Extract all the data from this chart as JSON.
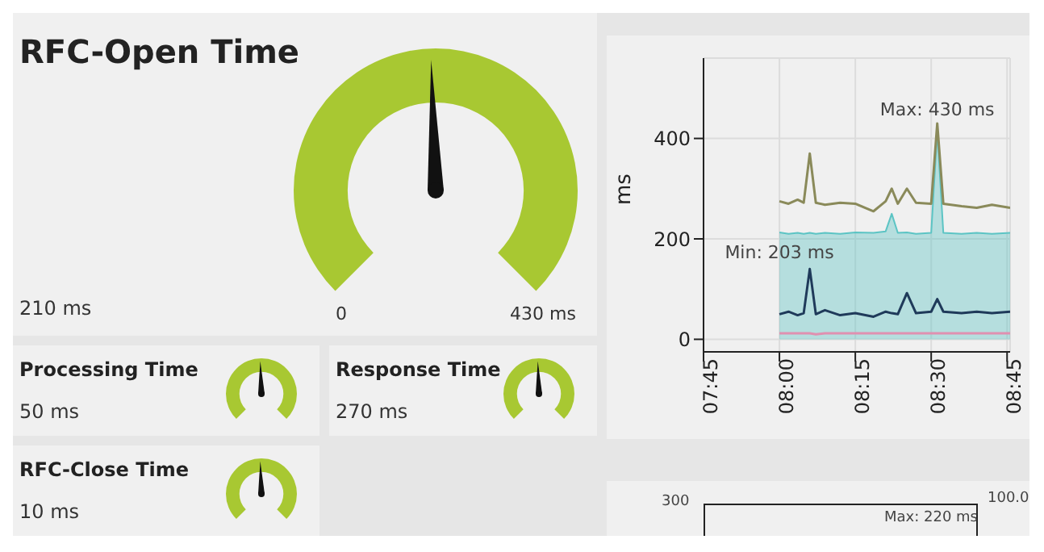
{
  "chart_data": [
    {
      "type": "other",
      "title": "RFC-Open Time",
      "annotations": [
        "210 ms",
        "0",
        "430 ms"
      ]
    },
    {
      "type": "line",
      "x": [
        8.0,
        8.03,
        8.06,
        8.08,
        8.1,
        8.12,
        8.15,
        8.2,
        8.25,
        8.31,
        8.35,
        8.37,
        8.39,
        8.42,
        8.45,
        8.5,
        8.52,
        8.54,
        8.6,
        8.65,
        8.7,
        8.76
      ],
      "series": [
        {
          "type": "area",
          "color": "#5cc4c4",
          "values": [
            213,
            210,
            212,
            210,
            212,
            210,
            212,
            210,
            213,
            212,
            215,
            250,
            212,
            213,
            210,
            212,
            415,
            212,
            210,
            212,
            210,
            212
          ]
        },
        {
          "color": "#8a8a5a",
          "values": [
            275,
            270,
            278,
            272,
            370,
            272,
            268,
            272,
            270,
            255,
            275,
            300,
            270,
            300,
            272,
            270,
            430,
            270,
            265,
            262,
            268,
            262
          ]
        },
        {
          "color": "#1f3a5a",
          "values": [
            50,
            55,
            48,
            52,
            140,
            50,
            58,
            48,
            52,
            45,
            55,
            52,
            50,
            92,
            52,
            55,
            80,
            55,
            52,
            55,
            52,
            55
          ]
        },
        {
          "color": "#e090b0",
          "values": [
            12,
            12,
            12,
            12,
            12,
            10,
            12,
            12,
            12,
            12,
            12,
            12,
            12,
            12,
            12,
            12,
            12,
            12,
            12,
            12,
            12,
            12
          ]
        }
      ],
      "xlim": [
        7.75,
        8.76
      ],
      "xticks": [
        {
          "value": 7.75,
          "label": "07:45"
        },
        {
          "value": 8.0,
          "label": "08:00"
        },
        {
          "value": 8.25,
          "label": "08:15"
        },
        {
          "value": 8.5,
          "label": "08:30"
        },
        {
          "value": 8.75,
          "label": "08:45"
        }
      ],
      "ylim": [
        -25,
        560
      ],
      "yticks": [
        0,
        200,
        400
      ],
      "ylabel": "ms",
      "grid": true,
      "marker": "none",
      "annotations": [
        {
          "text": "Max: 430 ms",
          "x": 8.52,
          "y": 430
        },
        {
          "text": "Min: 203 ms",
          "x": 8.0,
          "y": 203
        }
      ]
    },
    {
      "type": "other",
      "title": "Processing Time",
      "annotations": [
        "50 ms"
      ]
    },
    {
      "type": "other",
      "title": "Response Time",
      "annotations": [
        "270 ms"
      ]
    },
    {
      "type": "other",
      "title": "RFC-Close Time",
      "annotations": [
        "10 ms"
      ]
    },
    {
      "type": "other",
      "annotations": [
        "300",
        "100.0",
        "Max: 220 ms"
      ]
    }
  ]
}
